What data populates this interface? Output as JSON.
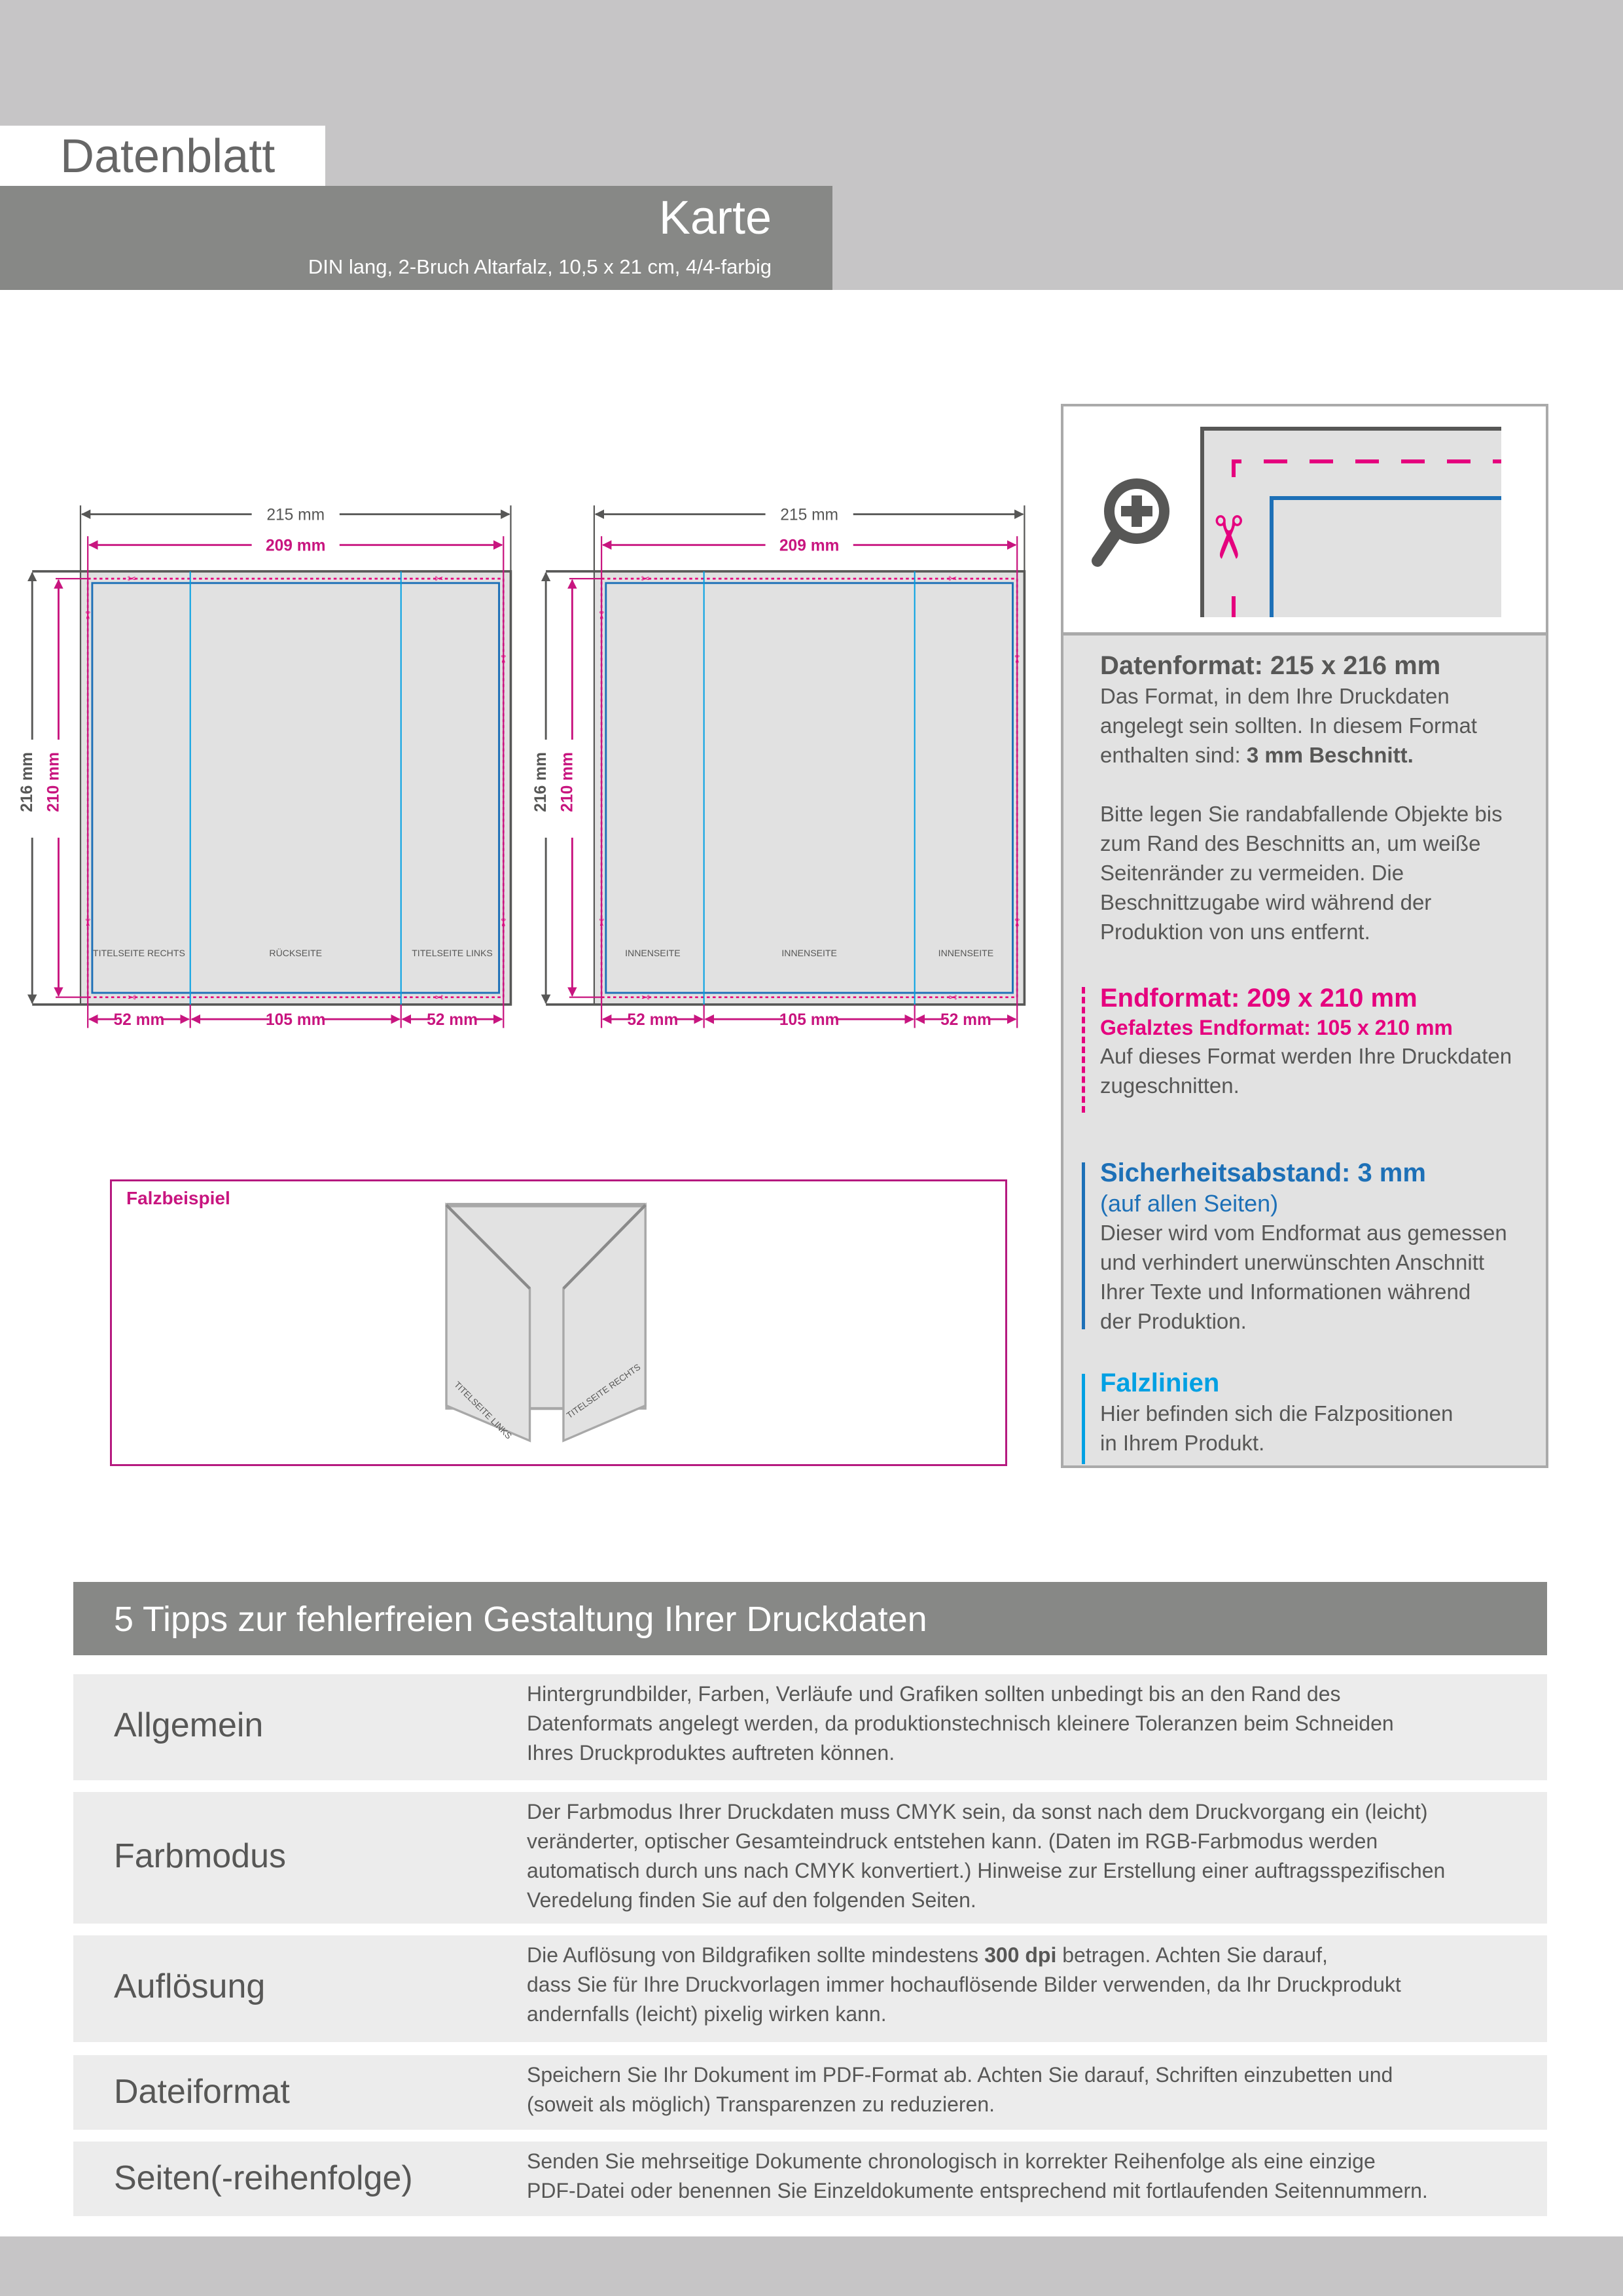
{
  "header": {
    "title": "Datenblatt",
    "product": "Karte",
    "subtitle": "DIN lang, 2-Bruch Altarfalz, 10,5 x 21 cm, 4/4-farbig"
  },
  "colors": {
    "header_gray": "#878886",
    "band_gray": "#c6c5c6",
    "magenta": "#e5007e",
    "safety_blue": "#1d70b7",
    "fold_blue": "#00a0e3"
  },
  "diagrams": [
    {
      "width_data": "215 mm",
      "width_final": "209 mm",
      "height_data": "216 mm",
      "height_final": "210 mm",
      "panels": [
        "52 mm",
        "105 mm",
        "52 mm"
      ],
      "panel_labels": [
        "TITELSEITE RECHTS",
        "RÜCKSEITE",
        "TITELSEITE LINKS"
      ]
    },
    {
      "width_data": "215 mm",
      "width_final": "209 mm",
      "height_data": "216 mm",
      "height_final": "210 mm",
      "panels": [
        "52 mm",
        "105 mm",
        "52 mm"
      ],
      "panel_labels": [
        "INNENSEITE",
        "INNENSEITE",
        "INNENSEITE"
      ]
    }
  ],
  "falzbeispiel": {
    "label": "Falzbeispiel",
    "left_flap": "TITELSEITE LINKS",
    "right_flap": "TITELSEITE RECHTS"
  },
  "legend": {
    "icons": [
      "zoom-in-icon",
      "scissors-icon"
    ],
    "datenformat": {
      "title": "Datenformat: 215 x 216 mm",
      "lines": [
        "Das Format, in dem Ihre Druckdaten",
        "angelegt sein sollten. In diesem Format",
        "enthalten sind: "
      ],
      "bold": "3 mm Beschnitt.",
      "para2": [
        "Bitte legen Sie randabfallende Objekte bis",
        "zum Rand des Beschnitts an, um weiße",
        "Seitenränder zu vermeiden. Die",
        "Beschnittzugabe wird während der",
        "Produktion von uns entfernt."
      ]
    },
    "endformat": {
      "title": "Endformat: 209 x 210 mm",
      "subtitle": "Gefalztes Endformat: 105 x 210 mm",
      "lines": [
        "Auf dieses Format werden Ihre Druckdaten",
        "zugeschnitten."
      ]
    },
    "sicherheit": {
      "title": "Sicherheitsabstand: 3 mm",
      "subtitle": "(auf allen Seiten)",
      "lines": [
        "Dieser wird vom Endformat aus gemessen",
        "und verhindert unerwünschten Anschnitt",
        "Ihrer Texte und Informationen während",
        "der Produktion."
      ]
    },
    "falzlinien": {
      "title": "Falzlinien",
      "lines": [
        "Hier befinden sich die Falzpositionen",
        "in Ihrem Produkt."
      ]
    }
  },
  "tips": {
    "heading": "5 Tipps zur fehlerfreien Gestaltung Ihrer Druckdaten",
    "rows": [
      {
        "label": "Allgemein",
        "lines": [
          "Hintergrundbilder, Farben, Verläufe und Grafiken sollten unbedingt bis an den Rand des",
          "Datenformats angelegt werden, da produktionstechnisch kleinere Toleranzen beim Schneiden",
          "Ihres Druckproduktes auftreten können."
        ]
      },
      {
        "label": "Farbmodus",
        "lines": [
          "Der Farbmodus Ihrer Druckdaten muss CMYK sein, da sonst nach dem Druckvorgang ein (leicht)",
          "veränderter, optischer Gesamteindruck entstehen kann. (Daten im RGB-Farbmodus werden",
          "automatisch durch uns nach CMYK konvertiert.) Hinweise zur Erstellung einer auftragsspezifischen",
          "Veredelung finden Sie  auf den folgenden Seiten."
        ]
      },
      {
        "label": "Auflösung",
        "line1_pre": "Die Auflösung von Bildgrafiken sollte mindestens ",
        "line1_bold": "300 dpi",
        "line1_post": " betragen. Achten Sie darauf,",
        "lines": [
          "",
          "dass Sie für Ihre Druckvorlagen immer hochauflösende Bilder verwenden, da Ihr Druckprodukt",
          "andernfalls (leicht) pixelig wirken kann."
        ]
      },
      {
        "label": "Dateiformat",
        "lines": [
          "Speichern Sie Ihr Dokument im PDF-Format ab. Achten Sie darauf, Schriften einzubetten und",
          "(soweit als möglich) Transparenzen zu reduzieren."
        ]
      },
      {
        "label": "Seiten(-reihenfolge)",
        "lines": [
          "Senden Sie mehrseitige Dokumente chronologisch in korrekter Reihenfolge als eine einzige",
          "PDF-Datei oder benennen Sie Einzeldokumente entsprechend mit fortlaufenden Seitennummern."
        ]
      }
    ]
  }
}
